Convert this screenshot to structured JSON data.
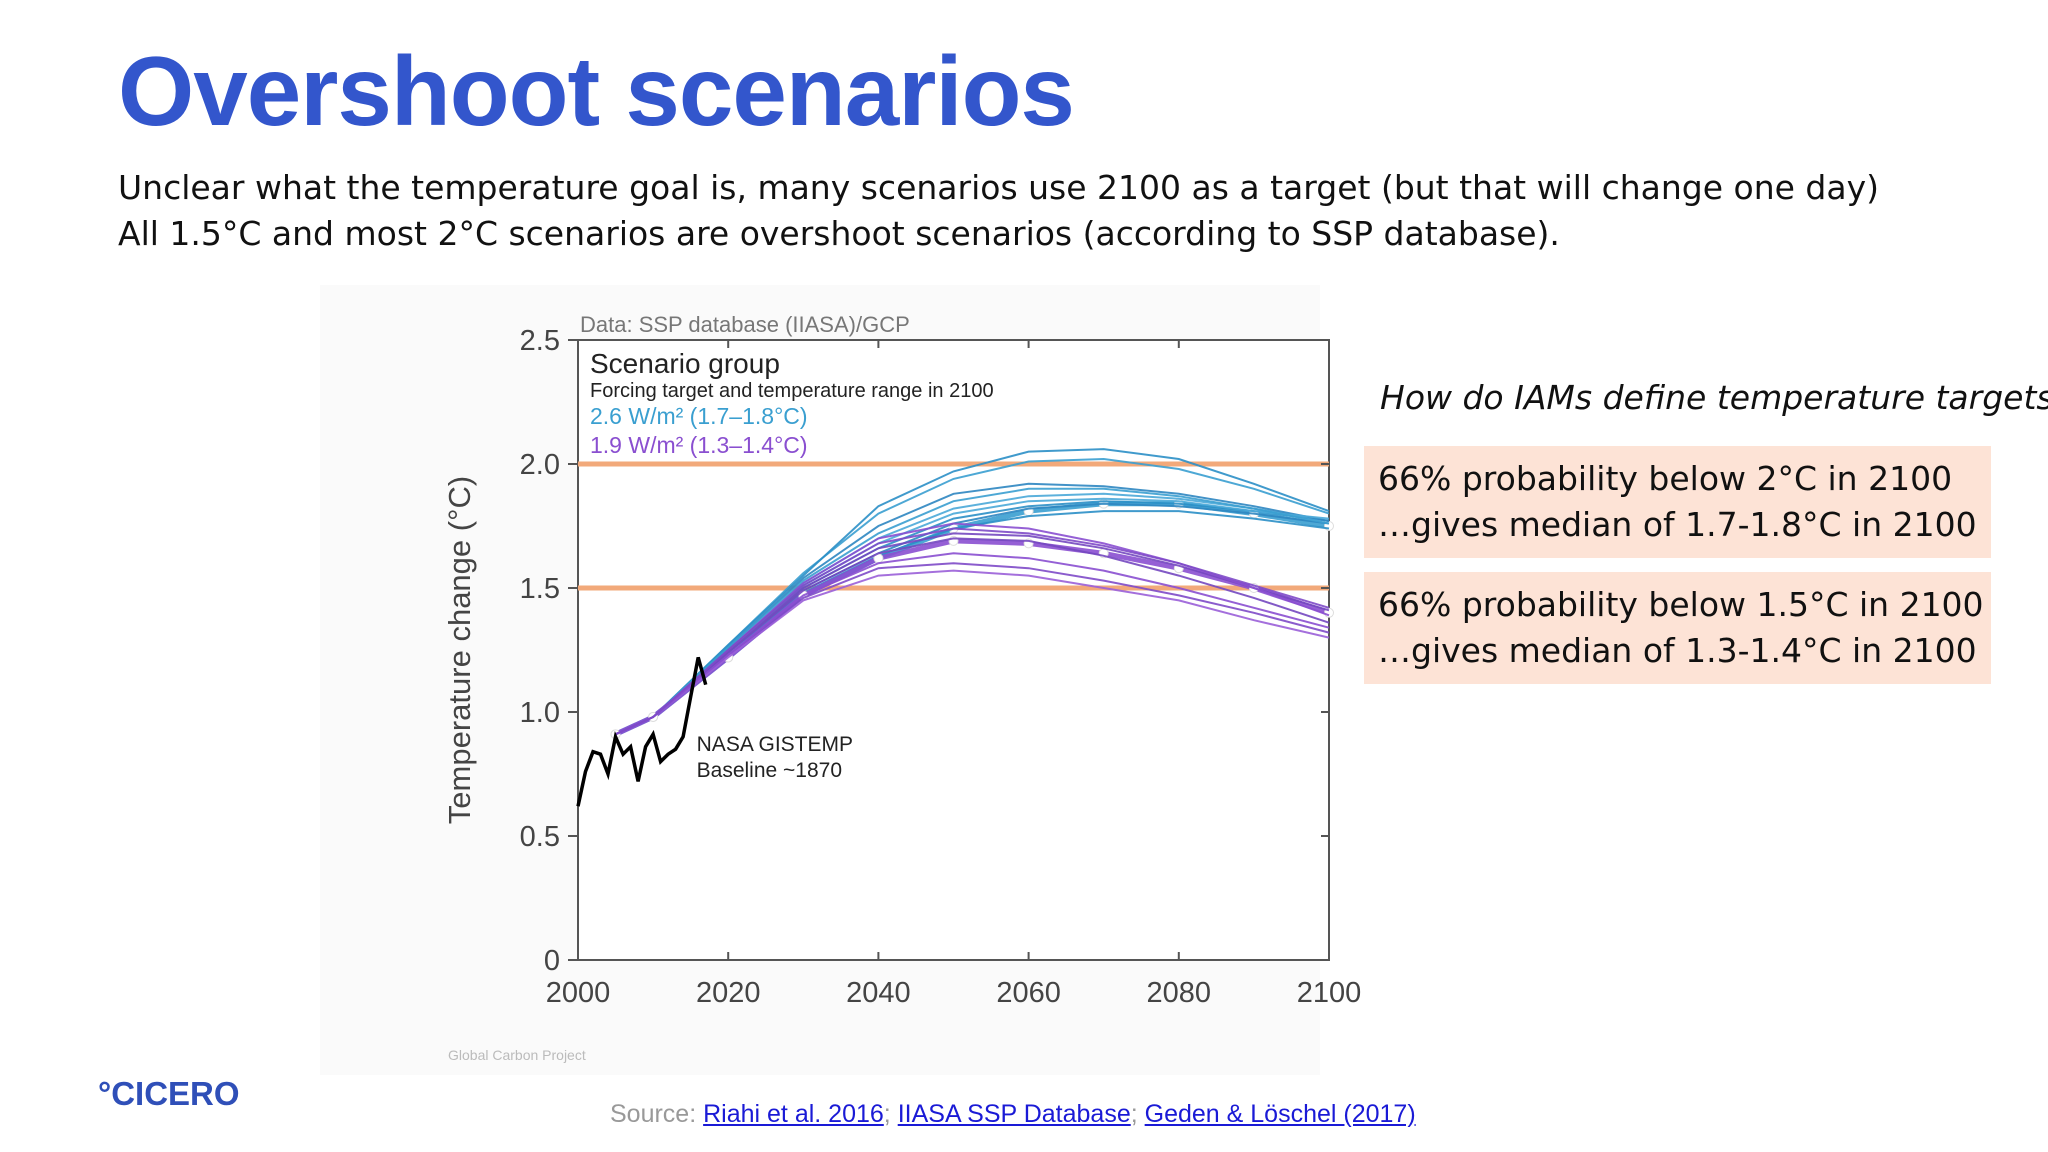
{
  "slide": {
    "title": "Overshoot scenarios",
    "subtitle_lines": [
      "Unclear what the temperature goal is, many scenarios use 2100 as a target (but that will change one day)",
      "All 1.5°C and most 2°C scenarios are overshoot scenarios (according to SSP database)."
    ],
    "question": "How do IAMs define temperature targets?",
    "boxes": [
      {
        "line1": "66% probability below 2°C in 2100",
        "line2": "…gives median of 1.7-1.8°C in 2100"
      },
      {
        "line1": "66% probability below 1.5°C in 2100",
        "line2": "…gives median of 1.3-1.4°C in 2100"
      }
    ],
    "logo": "°CICERO",
    "source": {
      "prefix": "Source: ",
      "links": [
        "Riahi et al. 2016",
        "IIASA SSP Database",
        "Geden &  Löschel (2017)"
      ],
      "separator": "; "
    }
  },
  "chart_data": {
    "type": "line",
    "data_source_label": "Data: SSP database (IIASA)/GCP",
    "credit": "Global Carbon Project",
    "ylabel": "Temperature change (°C)",
    "xlabel": "",
    "xlim": [
      2000,
      2100
    ],
    "ylim": [
      0,
      2.5
    ],
    "xticks": [
      "2000",
      "2020",
      "2040",
      "2060",
      "2080",
      "2100"
    ],
    "yticks": [
      "0",
      "0.5",
      "1.0",
      "1.5",
      "2.0",
      "2.5"
    ],
    "grid": false,
    "legend": {
      "placement": "top-left",
      "title": "Scenario group",
      "subtitle": "Forcing target and temperature range in 2100",
      "entries": [
        {
          "label": "2.6 W/m² (1.7–1.8°C)",
          "color": "#3a9fd0"
        },
        {
          "label": "1.9 W/m² (1.3–1.4°C)",
          "color": "#8a4fd0"
        }
      ]
    },
    "reference_lines": [
      {
        "y": 2.0,
        "color": "#f2a97a"
      },
      {
        "y": 1.5,
        "color": "#f2a97a"
      }
    ],
    "annotation": {
      "line1": "NASA GISTEMP",
      "line2": "Baseline ~1870",
      "x": 2015,
      "y": 0.87
    },
    "observed": {
      "name": "NASA GISTEMP",
      "color": "#000000",
      "x": [
        2000,
        2001,
        2002,
        2003,
        2004,
        2005,
        2006,
        2007,
        2008,
        2009,
        2010,
        2011,
        2012,
        2013,
        2014,
        2015,
        2016,
        2017
      ],
      "y": [
        0.62,
        0.76,
        0.84,
        0.83,
        0.75,
        0.9,
        0.83,
        0.86,
        0.72,
        0.86,
        0.91,
        0.8,
        0.83,
        0.85,
        0.9,
        1.06,
        1.22,
        1.11
      ]
    },
    "series": [
      {
        "group": "2.6",
        "x": [
          2005,
          2010,
          2020,
          2030,
          2040,
          2050,
          2060,
          2070,
          2080,
          2090,
          2100
        ],
        "y": [
          0.91,
          0.98,
          1.22,
          1.47,
          1.62,
          1.74,
          1.81,
          1.84,
          1.84,
          1.8,
          1.75
        ],
        "markers": true
      },
      {
        "group": "2.6",
        "x": [
          2005,
          2010,
          2020,
          2030,
          2040,
          2050,
          2060,
          2070,
          2080,
          2090,
          2100
        ],
        "y": [
          0.91,
          0.98,
          1.25,
          1.5,
          1.66,
          1.78,
          1.83,
          1.85,
          1.84,
          1.81,
          1.77
        ]
      },
      {
        "group": "2.6",
        "x": [
          2005,
          2010,
          2020,
          2030,
          2040,
          2050,
          2060,
          2070,
          2080,
          2090,
          2100
        ],
        "y": [
          0.91,
          0.98,
          1.25,
          1.52,
          1.7,
          1.82,
          1.87,
          1.88,
          1.86,
          1.82,
          1.77
        ]
      },
      {
        "group": "2.6",
        "x": [
          2005,
          2010,
          2020,
          2030,
          2040,
          2050,
          2060,
          2070,
          2080,
          2090,
          2100
        ],
        "y": [
          0.91,
          0.98,
          1.26,
          1.54,
          1.75,
          1.88,
          1.92,
          1.91,
          1.88,
          1.83,
          1.77
        ]
      },
      {
        "group": "2.6",
        "x": [
          2005,
          2010,
          2020,
          2030,
          2040,
          2050,
          2060,
          2070,
          2080,
          2090,
          2100
        ],
        "y": [
          0.91,
          0.98,
          1.27,
          1.56,
          1.8,
          1.94,
          2.01,
          2.02,
          1.98,
          1.9,
          1.8
        ]
      },
      {
        "group": "2.6",
        "x": [
          2005,
          2010,
          2020,
          2030,
          2040,
          2050,
          2060,
          2070,
          2080,
          2090,
          2100
        ],
        "y": [
          0.91,
          0.98,
          1.27,
          1.55,
          1.83,
          1.97,
          2.05,
          2.06,
          2.02,
          1.92,
          1.81
        ]
      },
      {
        "group": "2.6",
        "x": [
          2005,
          2010,
          2020,
          2030,
          2040,
          2050,
          2060,
          2070,
          2080,
          2090,
          2100
        ],
        "y": [
          0.91,
          0.98,
          1.25,
          1.51,
          1.68,
          1.8,
          1.85,
          1.86,
          1.85,
          1.81,
          1.78
        ]
      },
      {
        "group": "2.6",
        "x": [
          2005,
          2010,
          2020,
          2030,
          2040,
          2050,
          2060,
          2070,
          2080,
          2090,
          2100
        ],
        "y": [
          0.91,
          0.98,
          1.24,
          1.49,
          1.64,
          1.76,
          1.82,
          1.84,
          1.83,
          1.8,
          1.76
        ]
      },
      {
        "group": "2.6",
        "x": [
          2005,
          2010,
          2020,
          2030,
          2040,
          2050,
          2060,
          2070,
          2080,
          2090,
          2100
        ],
        "y": [
          0.91,
          0.98,
          1.26,
          1.53,
          1.72,
          1.85,
          1.9,
          1.9,
          1.87,
          1.82,
          1.76
        ]
      },
      {
        "group": "2.6",
        "x": [
          2005,
          2010,
          2020,
          2030,
          2040,
          2050,
          2060,
          2070,
          2080,
          2090,
          2100
        ],
        "y": [
          0.91,
          0.98,
          1.24,
          1.48,
          1.63,
          1.74,
          1.79,
          1.81,
          1.81,
          1.78,
          1.74
        ]
      },
      {
        "group": "1.9",
        "x": [
          2005,
          2010,
          2020,
          2030,
          2040,
          2050,
          2060,
          2070,
          2080,
          2090,
          2100
        ],
        "y": [
          0.91,
          0.98,
          1.22,
          1.47,
          1.62,
          1.69,
          1.68,
          1.64,
          1.58,
          1.5,
          1.4
        ],
        "markers": true
      },
      {
        "group": "1.9",
        "x": [
          2005,
          2010,
          2020,
          2030,
          2040,
          2050,
          2060,
          2070,
          2080,
          2090,
          2100
        ],
        "y": [
          0.91,
          0.98,
          1.24,
          1.5,
          1.66,
          1.72,
          1.71,
          1.66,
          1.59,
          1.5,
          1.41
        ]
      },
      {
        "group": "1.9",
        "x": [
          2005,
          2010,
          2020,
          2030,
          2040,
          2050,
          2060,
          2070,
          2080,
          2090,
          2100
        ],
        "y": [
          0.91,
          0.98,
          1.25,
          1.52,
          1.7,
          1.76,
          1.74,
          1.68,
          1.6,
          1.5,
          1.39
        ]
      },
      {
        "group": "1.9",
        "x": [
          2005,
          2010,
          2020,
          2030,
          2040,
          2050,
          2060,
          2070,
          2080,
          2090,
          2100
        ],
        "y": [
          0.91,
          0.98,
          1.23,
          1.46,
          1.58,
          1.6,
          1.58,
          1.53,
          1.47,
          1.4,
          1.32
        ]
      },
      {
        "group": "1.9",
        "x": [
          2005,
          2010,
          2020,
          2030,
          2040,
          2050,
          2060,
          2070,
          2080,
          2090,
          2100
        ],
        "y": [
          0.91,
          0.98,
          1.22,
          1.45,
          1.55,
          1.57,
          1.55,
          1.5,
          1.45,
          1.37,
          1.3
        ]
      },
      {
        "group": "1.9",
        "x": [
          2005,
          2010,
          2020,
          2030,
          2040,
          2050,
          2060,
          2070,
          2080,
          2090,
          2100
        ],
        "y": [
          0.91,
          0.98,
          1.24,
          1.49,
          1.64,
          1.7,
          1.69,
          1.63,
          1.55,
          1.46,
          1.36
        ]
      },
      {
        "group": "1.9",
        "x": [
          2005,
          2010,
          2020,
          2030,
          2040,
          2050,
          2060,
          2070,
          2080,
          2090,
          2100
        ],
        "y": [
          0.91,
          0.98,
          1.23,
          1.47,
          1.6,
          1.64,
          1.62,
          1.57,
          1.5,
          1.42,
          1.34
        ]
      },
      {
        "group": "1.9",
        "x": [
          2005,
          2010,
          2020,
          2030,
          2040,
          2050,
          2060,
          2070,
          2080,
          2090,
          2100
        ],
        "y": [
          0.91,
          0.98,
          1.25,
          1.51,
          1.68,
          1.74,
          1.72,
          1.67,
          1.6,
          1.51,
          1.42
        ]
      }
    ]
  }
}
